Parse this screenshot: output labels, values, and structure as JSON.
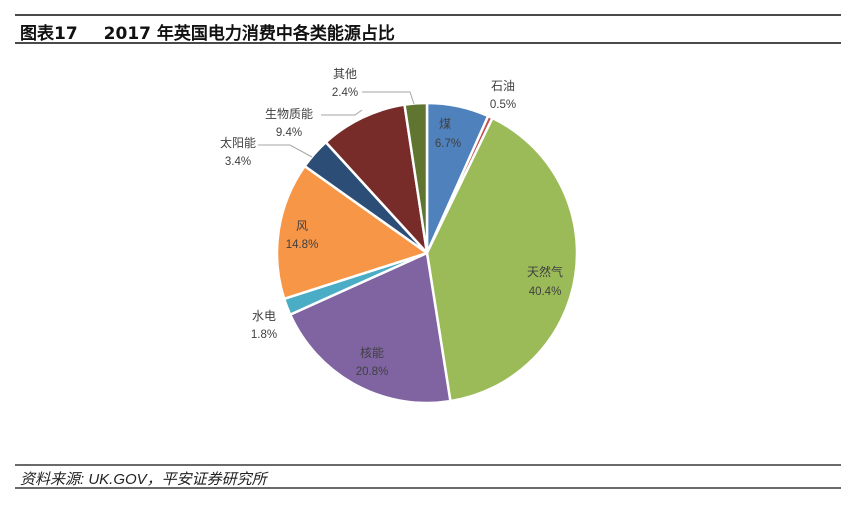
{
  "header": {
    "figure_number": "图表17",
    "title": "2017 年英国电力消费中各类能源占比"
  },
  "footer": {
    "source": "资料来源: UK.GOV，平安证券研究所"
  },
  "chart_data": {
    "type": "pie",
    "title": "2017 年英国电力消费中各类能源占比",
    "start_angle": "12 o'clock, clockwise",
    "categories": [
      "煤",
      "石油",
      "天然气",
      "核能",
      "水电",
      "风",
      "太阳能",
      "生物质能",
      "其他"
    ],
    "values": [
      6.7,
      0.5,
      40.4,
      20.8,
      1.8,
      14.8,
      3.4,
      9.4,
      2.4
    ],
    "labels": [
      "6.7%",
      "0.5%",
      "40.4%",
      "20.8%",
      "1.8%",
      "14.8%",
      "3.4%",
      "9.4%",
      "2.4%"
    ],
    "colors": [
      "#4f81bd",
      "#c0504d",
      "#9bbb59",
      "#8064a2",
      "#4bacc6",
      "#f79646",
      "#2c4d75",
      "#772c2a",
      "#5f7530"
    ],
    "legend": "none (data labels with leader lines)"
  }
}
